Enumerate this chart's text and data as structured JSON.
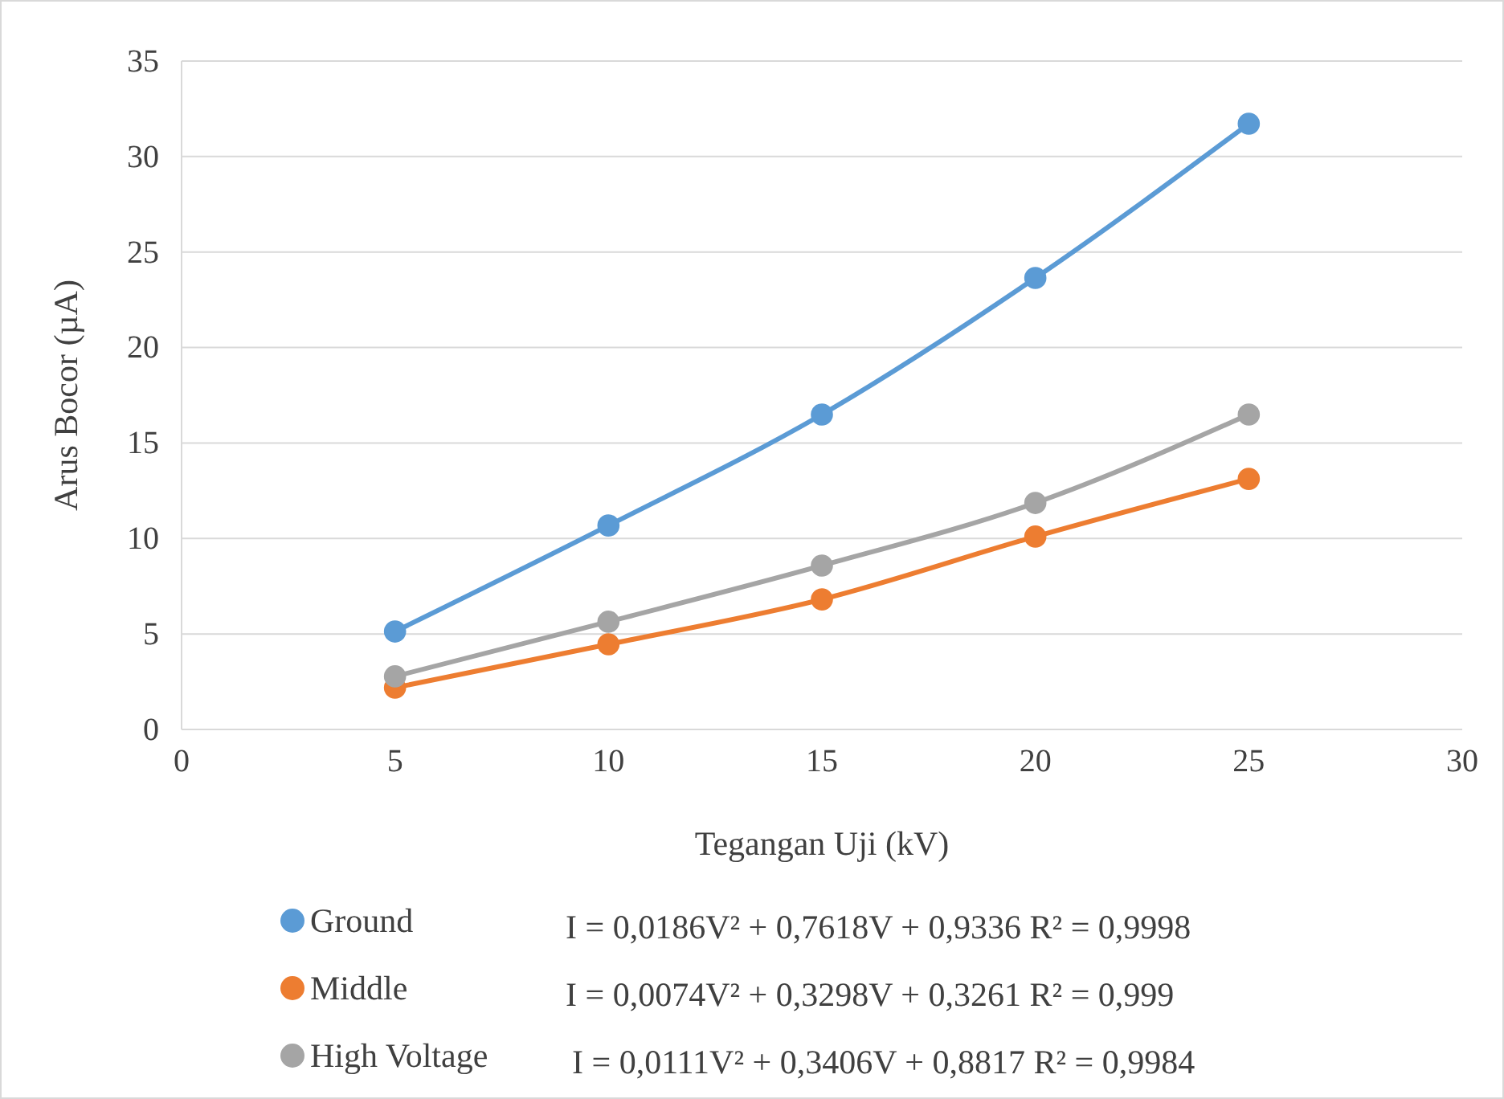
{
  "chart_data": {
    "type": "line",
    "xlabel": "Tegangan Uji (kV)",
    "ylabel": "Arus Bocor (µA)",
    "x": [
      5,
      10,
      15,
      20,
      25
    ],
    "series": [
      {
        "name": "Ground",
        "color": "#5b9bd5",
        "values": [
          5.13,
          10.68,
          16.49,
          23.64,
          31.72
        ]
      },
      {
        "name": "Middle",
        "color": "#ed7d31",
        "values": [
          2.19,
          4.46,
          6.81,
          10.1,
          13.12
        ]
      },
      {
        "name": "High Voltage",
        "color": "#a5a5a5",
        "values": [
          2.78,
          5.64,
          8.58,
          11.86,
          16.49
        ]
      }
    ],
    "annotations": [
      "I = 0,0186V² + 0,7618V + 0,9336   R² = 0,9998",
      "I = 0,0074V² + 0,3298V + 0,3261   R² = 0,999",
      "I = 0,0111V² + 0,3406V + 0,8817   R² = 0,9984"
    ],
    "xlim": [
      0,
      30
    ],
    "xticks": [
      0,
      5,
      10,
      15,
      20,
      25,
      30
    ],
    "ylim": [
      0,
      35
    ],
    "yticks": [
      0,
      5,
      10,
      15,
      20,
      25,
      30,
      35
    ],
    "grid": "y",
    "legend": "bottom",
    "marker": "circle",
    "line_style": "solid"
  }
}
